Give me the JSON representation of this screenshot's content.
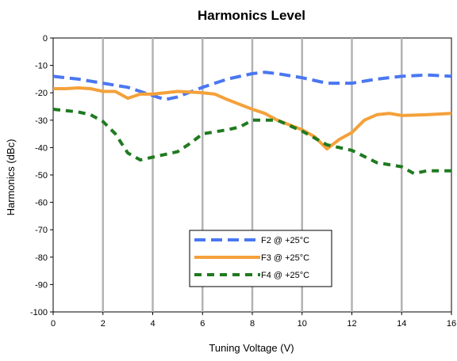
{
  "chart_data": {
    "type": "line",
    "title": "Harmonics Level",
    "xlabel": "Tuning Voltage (V)",
    "ylabel": "Harmonics (dBc)",
    "xlim": [
      0,
      16
    ],
    "ylim": [
      -100,
      0
    ],
    "xticks": [
      0,
      2,
      4,
      6,
      8,
      10,
      12,
      14,
      16
    ],
    "xtick_labels": [
      "0",
      "2",
      "4",
      "6",
      "8",
      "10",
      "12",
      "14",
      "16"
    ],
    "yticks": [
      0,
      -10,
      -20,
      -30,
      -40,
      -50,
      -60,
      -70,
      -80,
      -90,
      -100
    ],
    "ytick_labels": [
      "0",
      "-10",
      "-20",
      "-30",
      "-40",
      "-50",
      "-60",
      "-70",
      "-80",
      "-90",
      "-100"
    ],
    "grid": "vertical",
    "legend_position": "lower-center",
    "series": [
      {
        "name": "F2 @ +25°C",
        "color": "#4a77f2",
        "style": "dashed",
        "points": [
          [
            0,
            -14
          ],
          [
            1,
            -15
          ],
          [
            2,
            -16.5
          ],
          [
            3,
            -18
          ],
          [
            4,
            -21
          ],
          [
            4.5,
            -22.5
          ],
          [
            5,
            -21.5
          ],
          [
            6,
            -18
          ],
          [
            7,
            -15
          ],
          [
            8,
            -13
          ],
          [
            8.5,
            -12.5
          ],
          [
            9,
            -13
          ],
          [
            10,
            -14.5
          ],
          [
            11,
            -16.5
          ],
          [
            12,
            -16.5
          ],
          [
            13,
            -15
          ],
          [
            14,
            -14
          ],
          [
            15,
            -13.5
          ],
          [
            16,
            -14
          ]
        ]
      },
      {
        "name": "F3 @ +25°C",
        "color": "#f4a13a",
        "style": "solid",
        "points": [
          [
            0,
            -18.5
          ],
          [
            0.5,
            -18.5
          ],
          [
            1,
            -18.2
          ],
          [
            1.5,
            -18.5
          ],
          [
            2,
            -19.5
          ],
          [
            2.5,
            -19.5
          ],
          [
            3,
            -22
          ],
          [
            3.5,
            -20.5
          ],
          [
            4,
            -20.5
          ],
          [
            5,
            -19.5
          ],
          [
            6,
            -20
          ],
          [
            6.5,
            -20.5
          ],
          [
            7,
            -22.5
          ],
          [
            8,
            -26
          ],
          [
            8.5,
            -27.5
          ],
          [
            9,
            -30
          ],
          [
            10,
            -33.5
          ],
          [
            10.5,
            -36
          ],
          [
            11,
            -40.5
          ],
          [
            11.5,
            -37
          ],
          [
            12,
            -34.5
          ],
          [
            12.5,
            -30
          ],
          [
            13,
            -28
          ],
          [
            13.5,
            -27.5
          ],
          [
            14,
            -28.3
          ],
          [
            15,
            -28
          ],
          [
            16,
            -27.5
          ]
        ]
      },
      {
        "name": "F4 @ +25°C",
        "color": "#1f7a1f",
        "style": "dashed",
        "points": [
          [
            0,
            -26
          ],
          [
            1,
            -27
          ],
          [
            1.5,
            -28
          ],
          [
            2,
            -30.5
          ],
          [
            2.5,
            -35
          ],
          [
            3,
            -42
          ],
          [
            3.5,
            -44.5
          ],
          [
            4,
            -43.5
          ],
          [
            5,
            -41.5
          ],
          [
            5.5,
            -38.5
          ],
          [
            6,
            -35
          ],
          [
            7,
            -33.5
          ],
          [
            7.5,
            -32.5
          ],
          [
            8,
            -30
          ],
          [
            9,
            -30
          ],
          [
            10,
            -34
          ],
          [
            11,
            -39
          ],
          [
            12,
            -41
          ],
          [
            13,
            -45.5
          ],
          [
            14,
            -47
          ],
          [
            14.5,
            -49.5
          ],
          [
            15,
            -48.5
          ],
          [
            16,
            -48.5
          ]
        ]
      }
    ]
  }
}
